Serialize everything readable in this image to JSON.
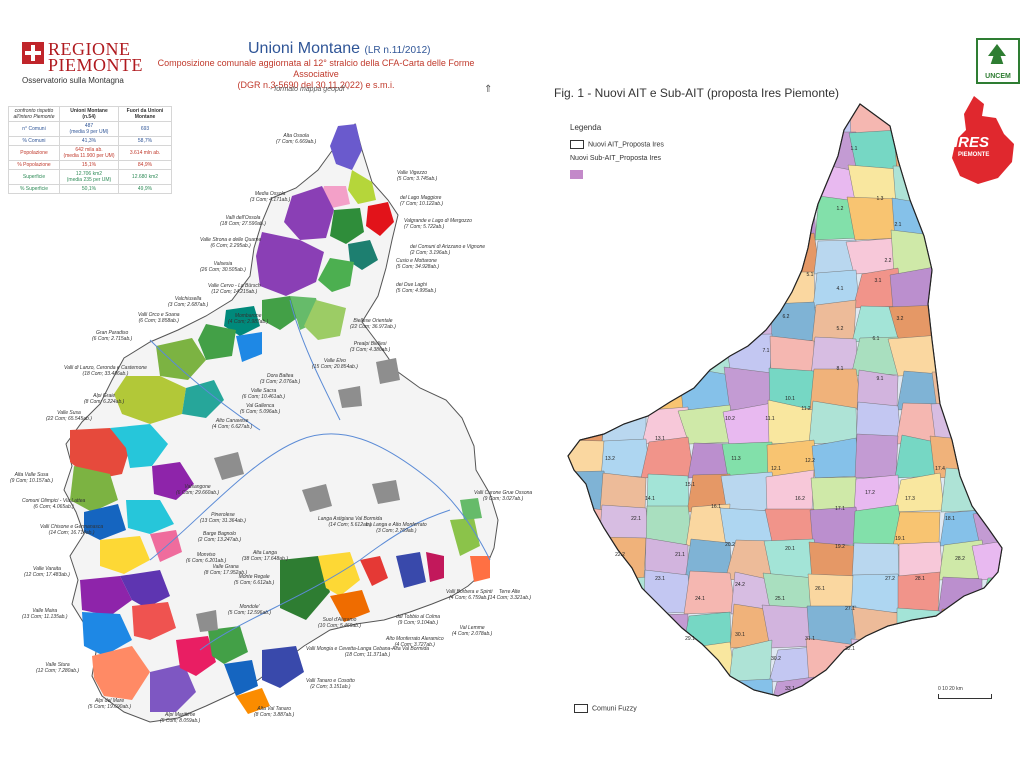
{
  "left": {
    "brand": {
      "line1": "REGIONE",
      "line2": "PIEMONTE",
      "sub": "Osservatorio sulla Montagna"
    },
    "title": "Unioni Montane",
    "title_suffix": "(LR n.11/2012)",
    "subtitle_l1": "Composizione comunale aggiornata al 12° stralcio della CFA-Carta delle Forme Associative",
    "subtitle_l2": "(DGR n.3-5690 del 30.11.2022) e s.m.i.",
    "format_note": "- formato mappa geopdf -",
    "north": "⇑",
    "table": {
      "h0": "confronto rispetto all'intero Piemonte",
      "h1": "Unioni Montane (n.54)",
      "h2": "Fuori da Unioni Montane",
      "rows": [
        {
          "k": "n° Comuni",
          "v1": "487",
          "v1b": "(media 9 per UM)",
          "v2": "693"
        },
        {
          "k": "% Comuni",
          "v1": "41,3%",
          "v1b": "",
          "v2": "58,7%"
        },
        {
          "k": "Popolazione",
          "v1": "642 mila ab.",
          "v1b": "(media 11.900 per UM)",
          "v2": "3.614 mln ab."
        },
        {
          "k": "% Popolazione",
          "v1": "15,1%",
          "v1b": "",
          "v2": "84,9%"
        },
        {
          "k": "Superficie",
          "v1": "12.706 km2",
          "v1b": "(media 235 per UM)",
          "v2": "12.680 km2"
        },
        {
          "k": "% Superficie",
          "v1": "50,1%",
          "v1b": "",
          "v2": "49,9%"
        }
      ]
    },
    "labels": [
      {
        "t1": "Alta Ossola",
        "t2": "(7 Com; 6.669ab.)"
      },
      {
        "t1": "Valle Vigezzo",
        "t2": "(5 Com; 3.745ab.)"
      },
      {
        "t1": "Media Ossola",
        "t2": "(3 Com; 4.171ab.)"
      },
      {
        "t1": "del Lago Maggiore",
        "t2": "(7 Com; 10.122ab.)"
      },
      {
        "t1": "Valli dell'Ossola",
        "t2": "(18 Com; 27.590ab.)"
      },
      {
        "t1": "Valgrande e Lago di Mergozzo",
        "t2": "(7 Com; 5.722ab.)"
      },
      {
        "t1": "Valle Strona e delle Quarne",
        "t2": "(6 Com; 2.295ab.)"
      },
      {
        "t1": "dei Comuni di Arizzano e Vignone",
        "t2": "(2 Com; 3.196ab.)"
      },
      {
        "t1": "Valsesia",
        "t2": "(26 Com; 30.505ab.)"
      },
      {
        "t1": "Cusio e Mottarone",
        "t2": "(5 Com; 34.928ab.)"
      },
      {
        "t1": "Valle Cervo - La Bürsch",
        "t2": "(12 Com; 14.215ab.)"
      },
      {
        "t1": "dei Due Laghi",
        "t2": "(5 Com; 4.995ab.)"
      },
      {
        "t1": "Valchiusella",
        "t2": "(3 Com; 2.687ab.)"
      },
      {
        "t1": "Valli Orco e Soana",
        "t2": "(6 Com; 3.858ab.)"
      },
      {
        "t1": "Mombarone",
        "t2": "(4 Com; 2.987ab.)"
      },
      {
        "t1": "Biellese Orientale",
        "t2": "(22 Com; 36.972ab.)"
      },
      {
        "t1": "Gran Paradiso",
        "t2": "(6 Com; 2.715ab.)"
      },
      {
        "t1": "Prealpi Biellesi",
        "t2": "(3 Com; 4.386ab.)"
      },
      {
        "t1": "Valli di Lanzo, Ceronda e Casternone",
        "t2": "(18 Com; 33.486ab.)"
      },
      {
        "t1": "Valle Elvo",
        "t2": "(15 Com; 20.854ab.)"
      },
      {
        "t1": "Dora Baltea",
        "t2": "(3 Com; 2.076ab.)"
      },
      {
        "t1": "Alpi Graie",
        "t2": "(8 Com; 6.224ab.)"
      },
      {
        "t1": "Valle Sacra",
        "t2": "(6 Com; 10.461ab.)"
      },
      {
        "t1": "Valle Susa",
        "t2": "(22 Com; 65.545ab.)"
      },
      {
        "t1": "Val Gallenca",
        "t2": "(5 Com; 5.096ab.)"
      },
      {
        "t1": "Alto Canavese",
        "t2": "(4 Com; 6.627ab.)"
      },
      {
        "t1": "Alta Valle Susa",
        "t2": "(9 Com; 10.157ab.)"
      },
      {
        "t1": "Valsangone",
        "t2": "(6 Com; 29.660ab.)"
      },
      {
        "t1": "Comuni Olimpici - Via Lattea",
        "t2": "(6 Com; 4.065ab.)"
      },
      {
        "t1": "Pinerolese",
        "t2": "(13 Com; 31.364ab.)"
      },
      {
        "t1": "Valli Chisone e Germanasca",
        "t2": "(14 Com; 16.714ab.)"
      },
      {
        "t1": "Barge Bagnolo",
        "t2": "(2 Com; 13.247ab.)"
      },
      {
        "t1": "Valli Curone Grue Ossona",
        "t2": "(9 Com; 3.027ab.)"
      },
      {
        "t1": "Langa Astigiana Val Bormida",
        "t2": "(14 Com; 5.612ab.)"
      },
      {
        "t1": "tra Langa e Alto Monferrato",
        "t2": "(3 Com; 2.769ab.)"
      },
      {
        "t1": "Monviso",
        "t2": "(6 Com; 6.201ab.)"
      },
      {
        "t1": "Alta Langa",
        "t2": "(38 Com; 17.648ab.)"
      },
      {
        "t1": "Valle Varaita",
        "t2": "(12 Com; 17.483ab.)"
      },
      {
        "t1": "Valle Grana",
        "t2": "(8 Com; 17.952ab.)"
      },
      {
        "t1": "Monte Regale",
        "t2": "(5 Com; 6.612ab.)"
      },
      {
        "t1": "Valli Borbera e Spinti",
        "t2": "(4 Com; 6.759ab.)"
      },
      {
        "t1": "Terre Alte",
        "t2": "(14 Com; 3.321ab.)"
      },
      {
        "t1": "Valle Maira",
        "t2": "(13 Com; 11.135ab.)"
      },
      {
        "t1": "Mondole'",
        "t2": "(5 Com; 12.596ab.)"
      },
      {
        "t1": "dal Tobbio al Colma",
        "t2": "(9 Com; 9.104ab.)"
      },
      {
        "t1": "Suol d'Aleramo",
        "t2": "(10 Com; 5.469ab.)"
      },
      {
        "t1": "Val Lemme",
        "t2": "(4 Com; 2.078ab.)"
      },
      {
        "t1": "Alto Monferrato Aleramico",
        "t2": "(4 Com; 3.727ab.)"
      },
      {
        "t1": "Valle Stura",
        "t2": "(12 Com; 7.280ab.)"
      },
      {
        "t1": "Valli Mongia e Cevetta-Langa Cebana-Alta Val Bormida",
        "t2": "(18 Com; 11.371ab.)"
      },
      {
        "t1": "Valli Tanaro e Cosotto",
        "t2": "(2 Com; 3.151ab.)"
      },
      {
        "t1": "Alpi del Mare",
        "t2": "(5 Com; 19.690ab.)"
      },
      {
        "t1": "Alpi Marittime",
        "t2": "(5 Com; 8.059ab.)"
      },
      {
        "t1": "Alta Val Tanaro",
        "t2": "(8 Com; 3.887ab.)"
      }
    ]
  },
  "right": {
    "logo_word": "UNCEM",
    "fig_title": "Fig. 1 - Nuovi AIT e Sub-AIT (proposta Ires Piemonte)",
    "legend_title": "Legenda",
    "legend_ait": "Nuovi AIT_Proposta Ires",
    "legend_sub": "Nuovi Sub-AIT_Proposta Ires",
    "ires_text": "IRES",
    "ires_sub": "PIEMONTE",
    "scale": "0      10      20 km",
    "comuni_fuzzy": "Comuni Fuzzy",
    "colors": {
      "purple": "#c389c9",
      "ires_red": "#e0282e"
    },
    "region_labels": [
      "1.1",
      "1.2",
      "1.3",
      "2.1",
      "2.2",
      "3.1",
      "3.2",
      "4.1",
      "5.1",
      "5.2",
      "6.1",
      "6.2",
      "7.1",
      "8.1",
      "9.1",
      "10.1",
      "10.2",
      "11.1",
      "11.2",
      "11.3",
      "12.1",
      "12.2",
      "13.1",
      "13.2",
      "14.1",
      "15.1",
      "16.1",
      "16.2",
      "17.1",
      "17.2",
      "17.3",
      "17.4",
      "18.1",
      "19.1",
      "19.2",
      "20.1",
      "20.2",
      "21.1",
      "22.1",
      "22.2",
      "23.1",
      "24.1",
      "24.2",
      "25.1",
      "26.1",
      "27.1",
      "27.2",
      "28.1",
      "28.2",
      "29.1",
      "30.1",
      "30.2",
      "31.1",
      "32.1",
      "33.1"
    ]
  }
}
